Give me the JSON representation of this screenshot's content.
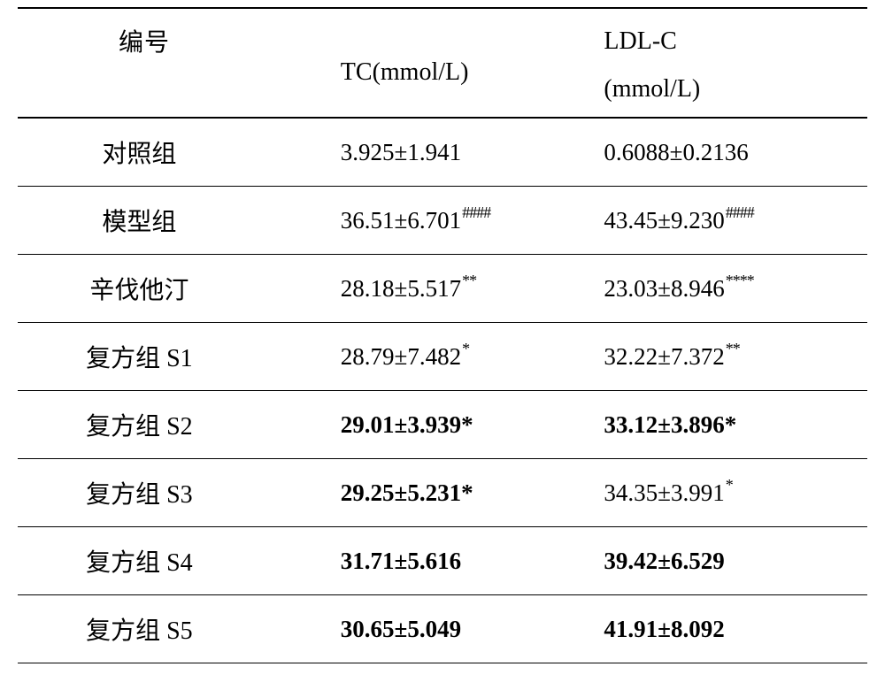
{
  "table": {
    "columns": {
      "id": "编号",
      "tc": "TC(mmol/L)",
      "ldl_line1": "LDL-C",
      "ldl_line2": "(mmol/L)"
    },
    "text_color": "#000000",
    "background_color": "#ffffff",
    "border_color": "#000000",
    "header_fontsize_pt": 21,
    "cell_fontsize_pt": 20,
    "rows": [
      {
        "label": "对照组",
        "tc_value": "3.925±1.941",
        "tc_sup": "",
        "tc_bold": false,
        "ldl_value": "0.6088±0.2136",
        "ldl_sup": "",
        "ldl_bold": false
      },
      {
        "label": "模型组",
        "tc_value": "36.51±6.701",
        "tc_sup": "####",
        "tc_bold": false,
        "ldl_value": "43.45±9.230",
        "ldl_sup": "####",
        "ldl_bold": false
      },
      {
        "label": "辛伐他汀",
        "tc_value": "28.18±5.517",
        "tc_sup": "**",
        "tc_bold": false,
        "ldl_value": "23.03±8.946",
        "ldl_sup": "****",
        "ldl_bold": false
      },
      {
        "label": "复方组 S1",
        "tc_value": "28.79±7.482",
        "tc_sup": "*",
        "tc_bold": false,
        "ldl_value": "32.22±7.372",
        "ldl_sup": "**",
        "ldl_bold": false
      },
      {
        "label": "复方组 S2",
        "tc_value": "29.01±3.939*",
        "tc_sup": "",
        "tc_bold": true,
        "ldl_value": "33.12±3.896*",
        "ldl_sup": "",
        "ldl_bold": true
      },
      {
        "label": "复方组 S3",
        "tc_value": "29.25±5.231*",
        "tc_sup": "",
        "tc_bold": true,
        "ldl_value": "34.35±3.991",
        "ldl_sup": "*",
        "ldl_bold": false
      },
      {
        "label": "复方组 S4",
        "tc_value": "31.71±5.616",
        "tc_sup": "",
        "tc_bold": true,
        "ldl_value": "39.42±6.529",
        "ldl_sup": "",
        "ldl_bold": true
      },
      {
        "label": "复方组 S5",
        "tc_value": "30.65±5.049",
        "tc_sup": "",
        "tc_bold": true,
        "ldl_value": "41.91±8.092",
        "ldl_sup": "",
        "ldl_bold": true
      }
    ]
  }
}
